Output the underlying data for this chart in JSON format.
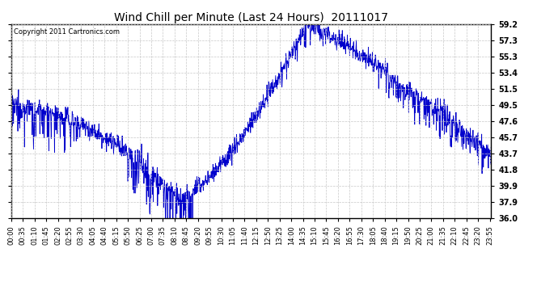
{
  "title": "Wind Chill per Minute (Last 24 Hours)  20111017",
  "copyright": "Copyright 2011 Cartronics.com",
  "line_color": "#0000cc",
  "background_color": "#ffffff",
  "grid_color": "#c8c8c8",
  "ylim": [
    36.0,
    59.2
  ],
  "yticks": [
    36.0,
    37.9,
    39.9,
    41.8,
    43.7,
    45.7,
    47.6,
    49.5,
    51.5,
    53.4,
    55.3,
    57.3,
    59.2
  ],
  "xtick_labels": [
    "00:00",
    "00:35",
    "01:10",
    "01:45",
    "02:20",
    "02:55",
    "03:30",
    "04:05",
    "04:40",
    "05:15",
    "05:50",
    "06:25",
    "07:00",
    "07:35",
    "08:10",
    "08:45",
    "09:20",
    "09:55",
    "10:30",
    "11:05",
    "11:40",
    "12:15",
    "12:50",
    "13:25",
    "14:00",
    "14:35",
    "15:10",
    "15:45",
    "16:20",
    "16:55",
    "17:30",
    "18:05",
    "18:40",
    "19:15",
    "19:50",
    "20:25",
    "21:00",
    "21:35",
    "22:10",
    "22:45",
    "23:20",
    "23:55"
  ],
  "num_minutes": 1440,
  "figwidth": 6.9,
  "figheight": 3.75,
  "dpi": 100
}
